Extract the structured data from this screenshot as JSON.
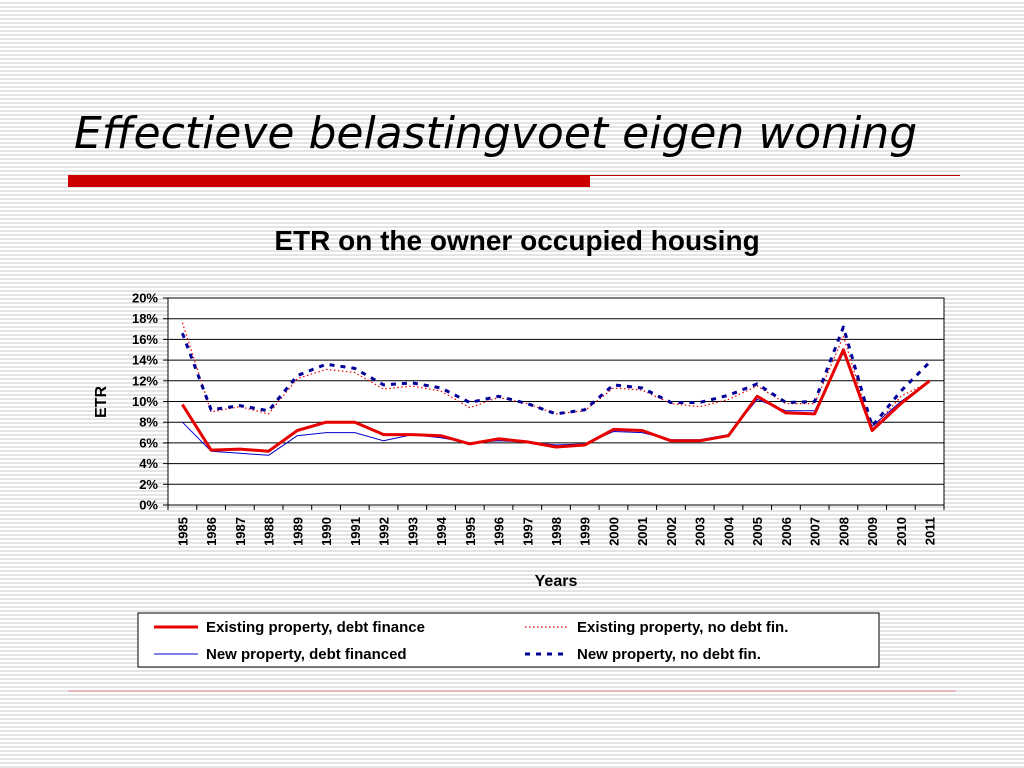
{
  "slide": {
    "title": "Effectieve belastingvoet eigen woning"
  },
  "colors": {
    "accent_red": "#cc0000",
    "series_red": "#e60000",
    "series_blue": "#0000cc",
    "series_navy": "#000099",
    "grid": "#000000"
  },
  "chart_data": {
    "type": "line",
    "title": "ETR on the owner occupied housing",
    "xlabel": "Years",
    "ylabel": "ETR",
    "ylim": [
      0,
      20
    ],
    "y_ticks": [
      "0%",
      "2%",
      "4%",
      "6%",
      "8%",
      "10%",
      "12%",
      "14%",
      "16%",
      "18%",
      "20%"
    ],
    "grid": "horizontal",
    "legend_position": "bottom",
    "categories": [
      "1985",
      "1986",
      "1987",
      "1988",
      "1989",
      "1990",
      "1991",
      "1992",
      "1993",
      "1994",
      "1995",
      "1996",
      "1997",
      "1998",
      "1999",
      "2000",
      "2001",
      "2002",
      "2003",
      "2004",
      "2005",
      "2006",
      "2007",
      "2008",
      "2009",
      "2010",
      "2011"
    ],
    "series": [
      {
        "name": "Existing property, debt finance",
        "style": "solid-thick",
        "color": "#e60000",
        "values": [
          9.7,
          5.3,
          5.4,
          5.2,
          7.2,
          8.0,
          8.0,
          6.8,
          6.8,
          6.7,
          5.9,
          6.4,
          6.1,
          5.6,
          5.8,
          7.3,
          7.2,
          6.2,
          6.2,
          6.7,
          10.5,
          8.9,
          8.8,
          15.0,
          7.2,
          9.8,
          12.0
        ]
      },
      {
        "name": "Existing property, no debt fin.",
        "style": "dotted-thin",
        "color": "#e60000",
        "values": [
          17.6,
          9.0,
          9.5,
          8.8,
          12.2,
          13.1,
          12.8,
          11.2,
          11.5,
          11.0,
          9.4,
          10.4,
          9.8,
          8.8,
          9.1,
          11.3,
          11.1,
          9.8,
          9.5,
          10.2,
          11.5,
          9.8,
          9.8,
          16.3,
          7.3,
          10.5,
          11.9
        ]
      },
      {
        "name": "New property, debt financed",
        "style": "solid-thin",
        "color": "#0000cc",
        "values": [
          8.0,
          5.2,
          5.0,
          4.8,
          6.7,
          7.0,
          7.0,
          6.2,
          6.8,
          6.5,
          6.0,
          6.2,
          6.1,
          5.8,
          5.9,
          7.1,
          7.0,
          6.3,
          6.3,
          6.8,
          10.2,
          9.1,
          9.1,
          14.7,
          7.6,
          10.0,
          12.0
        ]
      },
      {
        "name": "New property, no debt fin.",
        "style": "dashed-thick",
        "color": "#000099",
        "values": [
          16.6,
          9.2,
          9.6,
          9.1,
          12.5,
          13.6,
          13.2,
          11.6,
          11.8,
          11.3,
          9.9,
          10.5,
          9.8,
          8.8,
          9.2,
          11.6,
          11.3,
          9.9,
          9.9,
          10.6,
          11.7,
          9.9,
          10.0,
          17.2,
          7.6,
          11.0,
          13.8
        ]
      }
    ]
  }
}
